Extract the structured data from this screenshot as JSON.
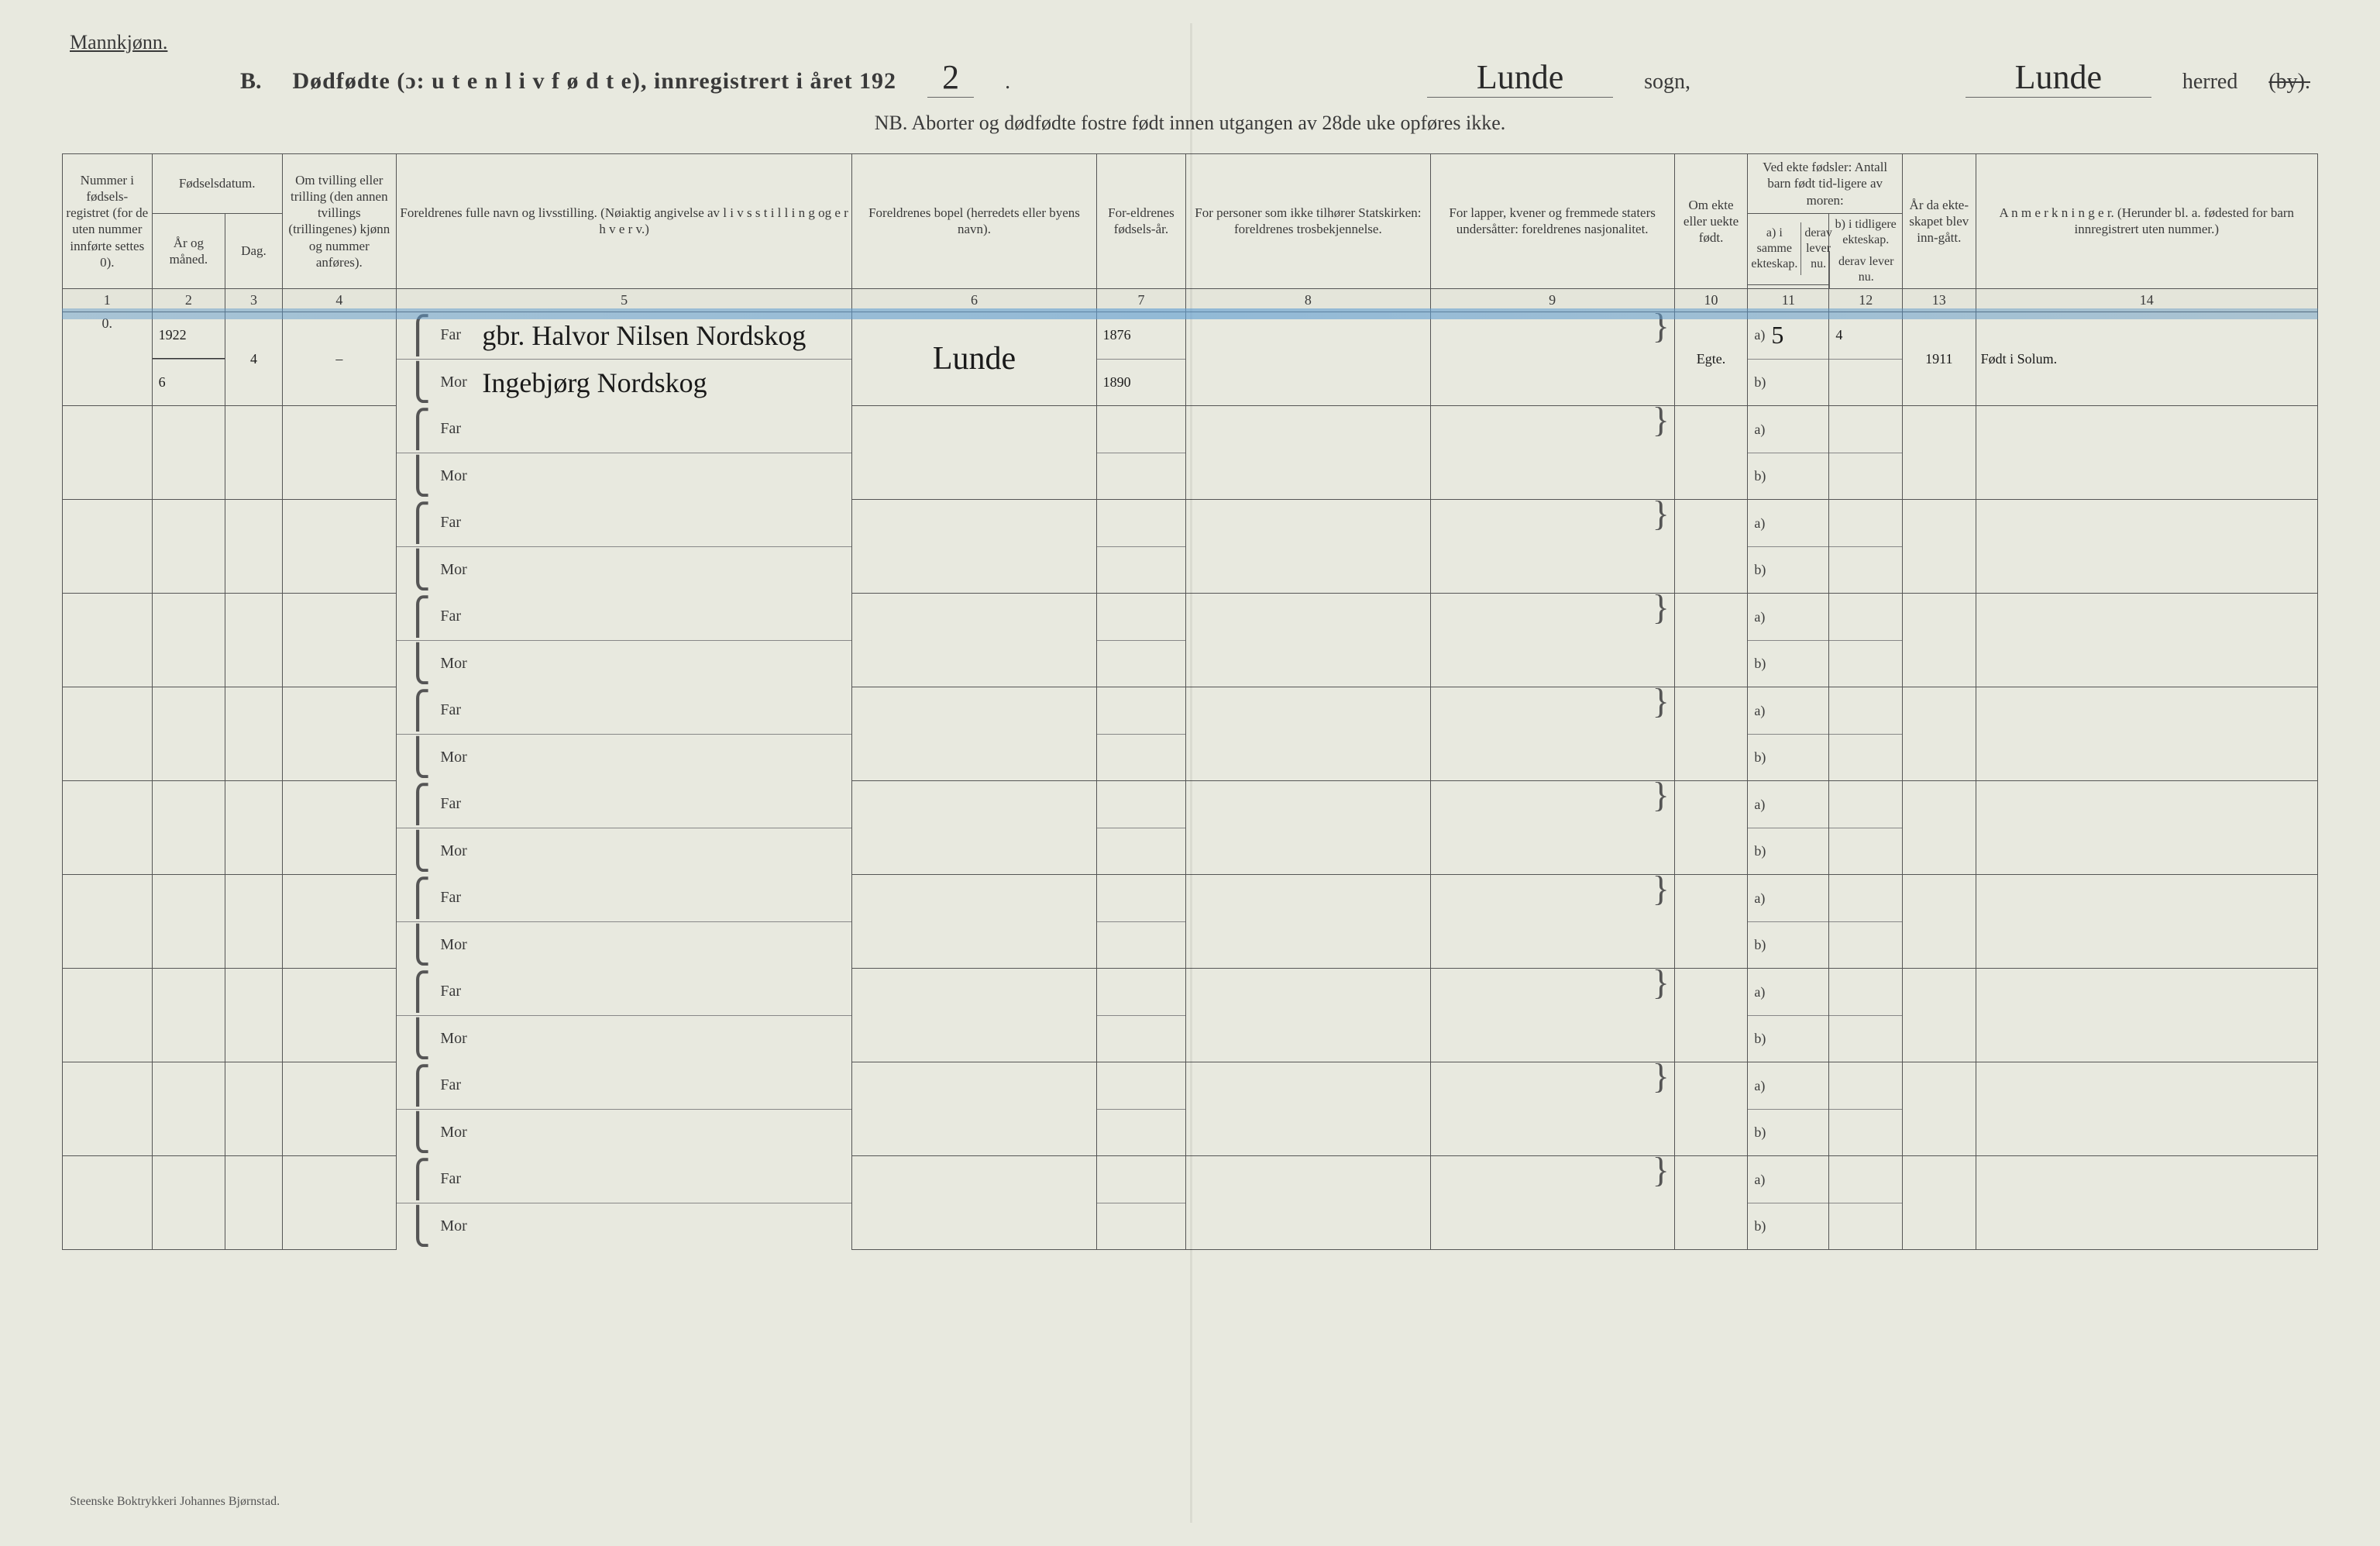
{
  "header": {
    "mannkjonn": "Mannkjønn.",
    "section_letter": "B.",
    "title_main": "Dødfødte (ɔ: u t e n  l i v  f ø d t e),  innregistrert i året 192",
    "year_suffix_hw": "2",
    "sogn_hw": "Lunde",
    "sogn_label": "sogn,",
    "herred_hw": "Lunde",
    "herred_label": "herred",
    "herred_by_strike": "(by).",
    "nb_line": "NB.  Aborter og dødfødte fostre født innen utgangen av 28de uke opføres ikke."
  },
  "columns": {
    "c1": "Nummer i fødsels-registret (for de uten nummer innførte settes 0).",
    "c2_top": "Fødselsdatum.",
    "c2a": "År og måned.",
    "c2b": "Dag.",
    "c4": "Om tvilling eller trilling (den annen tvillings (trillingenes) kjønn og nummer anføres).",
    "c5": "Foreldrenes fulle navn og livsstilling. (Nøiaktig angivelse av l i v s s t i l l i n g  og e r h v e r v.)",
    "c6": "Foreldrenes bopel (herredets eller byens navn).",
    "c7": "For-eldrenes fødsels-år.",
    "c8": "For personer som ikke tilhører Statskirken: foreldrenes trosbekjennelse.",
    "c9": "For lapper, kvener og fremmede staters undersåtter: foreldrenes nasjonalitet.",
    "c10": "Om ekte eller uekte født.",
    "c11_top": "Ved ekte fødsler: Antall barn født tid-ligere av moren:",
    "c11a": "a) i samme ekteskap.",
    "c11b": "b) i tidligere ekteskap.",
    "c11_derav": "derav lever nu.",
    "c13": "År da ekte-skapet blev inn-gått.",
    "c14": "A n m e r k n i n g e r. (Herunder bl. a. fødested for barn innregistrert uten nummer.)",
    "nums": [
      "1",
      "2",
      "3",
      "4",
      "5",
      "6",
      "7",
      "8",
      "9",
      "10",
      "11",
      "12",
      "13",
      "14"
    ]
  },
  "labels": {
    "far": "Far",
    "mor": "Mor",
    "a": "a)",
    "b": "b)"
  },
  "row1": {
    "num": "0.",
    "year": "1922",
    "month": "6",
    "day": "4",
    "twin": "–",
    "far_name": "gbr. Halvor Nilsen Nordskog",
    "mor_name": "Ingebjørg Nordskog",
    "bopel": "Lunde",
    "far_year": "1876",
    "mor_year": "1890",
    "ekte": "Egte.",
    "a_val": "5",
    "a_lever": "4",
    "ekteskap_aar": "1911",
    "anm": "Født i Solum."
  },
  "empty_rows": 9,
  "footer": "Steenske Boktrykkeri Johannes Bjørnstad.",
  "colors": {
    "page_bg": "#e8e9df",
    "ink": "#3a3a3a",
    "hw_ink": "#1a1a1a",
    "rule": "#555555",
    "blue_stripe": "#6aa0c8"
  }
}
